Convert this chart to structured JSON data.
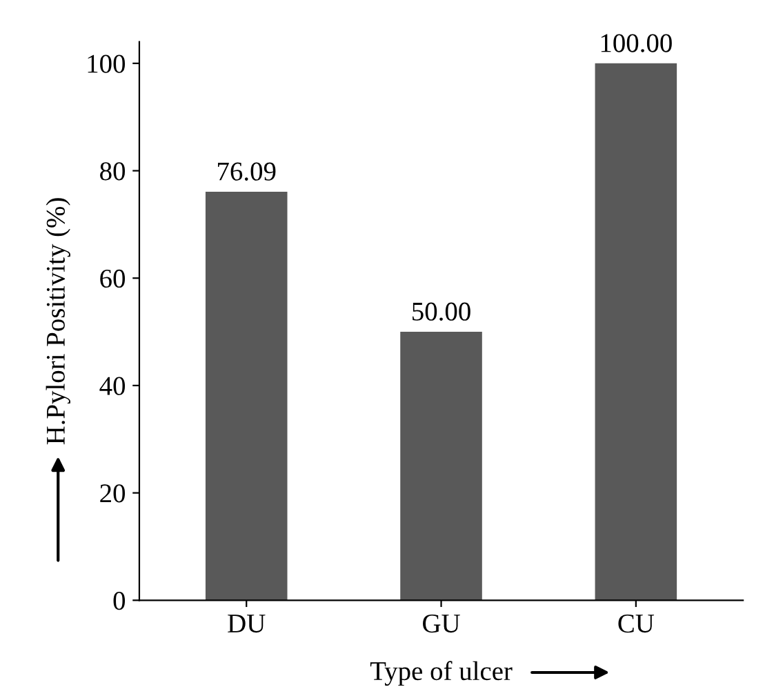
{
  "chart_data": {
    "type": "bar",
    "xlabel": "Type of ulcer",
    "ylabel": "H.Pylori Positivity (%)",
    "categories": [
      "DU",
      "GU",
      "CU"
    ],
    "values": [
      76.09,
      50.0,
      100.0
    ],
    "value_labels": [
      "76.09",
      "50.00",
      "100.00"
    ],
    "color": "#595959",
    "ylim": [
      0,
      104
    ],
    "yticks": [
      0,
      20,
      40,
      60,
      80,
      100
    ],
    "grid": false
  }
}
